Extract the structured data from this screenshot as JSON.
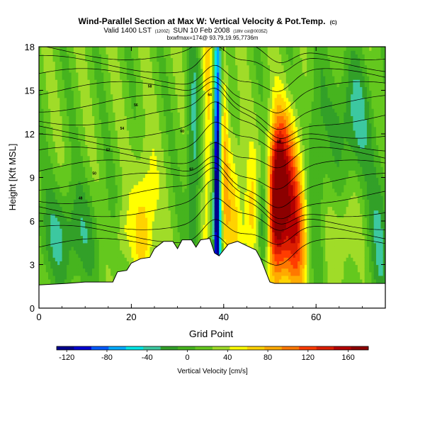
{
  "header": {
    "title": "Wind-Parallel Section at Max W: Vertical Velocity & Pot.Temp.",
    "title_unit": "(C)",
    "valid_line": "Valid 1400 LST",
    "valid_time": "(1200Z)",
    "valid_date": "SUN 10 Feb 2008",
    "run_info": "(18hr cst@0035Z)",
    "stats_line": "bxwfmax=174@ 93.79,19.95,7736m"
  },
  "chart_data": {
    "type": "heatmap",
    "xlabel": "Grid Point",
    "ylabel": "Height [Kft MSL]",
    "xlim": [
      0,
      75
    ],
    "ylim": [
      0,
      18
    ],
    "x_ticks": [
      0,
      20,
      40,
      60
    ],
    "y_ticks": [
      0,
      3,
      6,
      9,
      12,
      15,
      18
    ],
    "colorbar": {
      "label": "Vertical Velocity [cm/s]",
      "ticks": [
        -120,
        -80,
        -40,
        0,
        40,
        80,
        120,
        160
      ],
      "range": [
        -130,
        180
      ],
      "colors": [
        "#00008c",
        "#0000d2",
        "#005aff",
        "#00aaff",
        "#00e6e6",
        "#3cc8a0",
        "#32a028",
        "#46b41e",
        "#64c81e",
        "#a0dc28",
        "#ffff00",
        "#ffd200",
        "#ffaa00",
        "#ff7800",
        "#ff3c00",
        "#dc1e00",
        "#b40000",
        "#8c0000"
      ]
    },
    "terrain_kft": [
      [
        0,
        1.6
      ],
      [
        6,
        1.7
      ],
      [
        10,
        1.8
      ],
      [
        16,
        1.8
      ],
      [
        17,
        2.5
      ],
      [
        19,
        2.6
      ],
      [
        20,
        3.1
      ],
      [
        22,
        3.4
      ],
      [
        24,
        3.5
      ],
      [
        25,
        4.1
      ],
      [
        27,
        4.6
      ],
      [
        29,
        4.6
      ],
      [
        30,
        4.1
      ],
      [
        31,
        4.7
      ],
      [
        33,
        4.7
      ],
      [
        34,
        4.2
      ],
      [
        35,
        4.7
      ],
      [
        37,
        4.8
      ],
      [
        38,
        3.8
      ],
      [
        39,
        3.6
      ],
      [
        41,
        4.4
      ],
      [
        43,
        4.6
      ],
      [
        45,
        4.3
      ],
      [
        47,
        4.0
      ],
      [
        48,
        3.4
      ],
      [
        49,
        2.6
      ],
      [
        50,
        1.8
      ],
      [
        51,
        1.7
      ],
      [
        75,
        1.7
      ]
    ],
    "field_features": [
      {
        "x": 38.5,
        "z": 9,
        "w_cms": -120
      },
      {
        "x": 51.5,
        "z": 7,
        "w_cms": 174
      },
      {
        "x": 55,
        "z": 5.5,
        "w_cms": 130
      },
      {
        "x": 23,
        "z": 6,
        "w_cms": 55
      },
      {
        "x": 46,
        "z": 6,
        "w_cms": 50
      }
    ],
    "contour_labels": [
      "48",
      "50",
      "52",
      "54",
      "56",
      "58",
      "60",
      "62",
      "64",
      "66"
    ]
  }
}
